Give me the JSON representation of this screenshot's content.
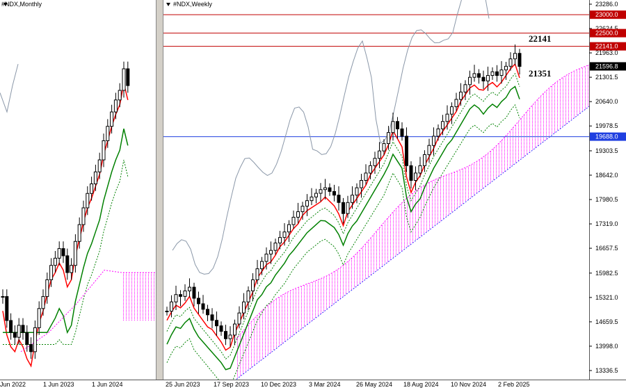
{
  "left_chart": {
    "title": "#NDX,Monthly",
    "x_labels": [
      "Jun 2022",
      "1 Jun 2023",
      "1 Jun 2024"
    ]
  },
  "right_chart": {
    "title": "#NDX,Weekly",
    "x_labels": [
      "25 Jun 2023",
      "17 Sep 2023",
      "10 Dec 2023",
      "3 Mar 2024",
      "26 May 2024",
      "18 Aug 2024",
      "10 Nov 2024",
      "2 Feb 2025"
    ],
    "annotations": [
      "22141",
      "21351"
    ]
  },
  "price_axis": {
    "ticks": [
      "23286.0",
      "22624.5",
      "21963.0",
      "21301.5",
      "20640.0",
      "19978.5",
      "19303.5",
      "18642.0",
      "17980.5",
      "17319.0",
      "16657.5",
      "15982.5",
      "15321.0",
      "14659.5",
      "13998.0",
      "13336.5"
    ],
    "tags": [
      {
        "label": "23000.0",
        "color": "#c00000"
      },
      {
        "label": "22500.0",
        "color": "#c00000"
      },
      {
        "label": "22141.0",
        "color": "#c00000"
      },
      {
        "label": "21596.8",
        "color": "#000000"
      },
      {
        "label": "19688.0",
        "color": "#1f3fe0"
      }
    ]
  },
  "colors": {
    "tenkan": "#ff0000",
    "kijun": "#008000",
    "cloud": "#ff00ff",
    "level_line": "#c00000",
    "horizontal_blue": "#1f3fe0",
    "chikou": "#8a97a8"
  },
  "chart_data": [
    {
      "type": "candlestick",
      "title": "#NDX,Monthly",
      "x_tick_labels": [
        "Jun 2022",
        "1 Jun 2023",
        "1 Jun 2024"
      ]
    },
    {
      "type": "candlestick",
      "title": "#NDX,Weekly",
      "x_tick_labels": [
        "25 Jun 2023",
        "17 Sep 2023",
        "10 Dec 2023",
        "3 Mar 2024",
        "26 May 2024",
        "18 Aug 2024",
        "10 Nov 2024",
        "2 Feb 2025"
      ],
      "y_tick_labels": [
        "23286.0",
        "22624.5",
        "21963.0",
        "21301.5",
        "20640.0",
        "19978.5",
        "19303.5",
        "18642.0",
        "17980.5",
        "17319.0",
        "16657.5",
        "15982.5",
        "15321.0",
        "14659.5",
        "13998.0",
        "13336.5"
      ],
      "ylim": [
        13336.5,
        23286.0
      ],
      "horizontal_levels": [
        {
          "value": 23000.0,
          "color": "#c00000"
        },
        {
          "value": 22500.0,
          "color": "#c00000"
        },
        {
          "value": 22141.0,
          "color": "#c00000"
        },
        {
          "value": 19688.0,
          "color": "#1f3fe0"
        }
      ],
      "last_price": 21596.8,
      "annotations": [
        "22141",
        "21351"
      ]
    }
  ]
}
